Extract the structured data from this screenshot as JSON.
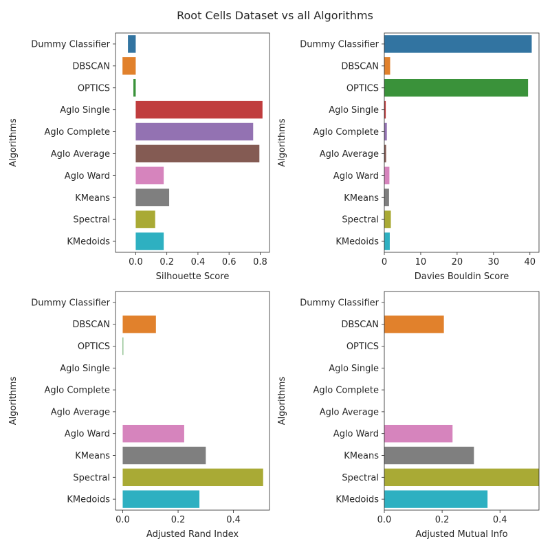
{
  "title": "Root Cells Dataset vs all Algorithms",
  "chart_data": [
    {
      "type": "bar",
      "orientation": "horizontal",
      "xlabel": "Silhouette Score",
      "ylabel": "Algorithms",
      "xlim": [
        -0.13,
        0.86
      ],
      "xticks": [
        0.0,
        0.2,
        0.4,
        0.6,
        0.8
      ],
      "xtick_labels": [
        "0.0",
        "0.2",
        "0.4",
        "0.6",
        "0.8"
      ],
      "categories": [
        "Dummy Classifier",
        "DBSCAN",
        "OPTICS",
        "Aglo Single",
        "Aglo Complete",
        "Aglo Average",
        "Aglo Ward",
        "KMeans",
        "Spectral",
        "KMedoids"
      ],
      "values": [
        -0.05,
        -0.085,
        -0.015,
        0.815,
        0.755,
        0.795,
        0.18,
        0.215,
        0.125,
        0.18
      ],
      "grid": false,
      "frame": "full"
    },
    {
      "type": "bar",
      "orientation": "horizontal",
      "xlabel": "Davies Bouldin Score",
      "ylabel": "Algorithms",
      "xlim": [
        0,
        42.5
      ],
      "xticks": [
        0,
        10,
        20,
        30,
        40
      ],
      "xtick_labels": [
        "0",
        "10",
        "20",
        "30",
        "40"
      ],
      "categories": [
        "Dummy Classifier",
        "DBSCAN",
        "OPTICS",
        "Aglo Single",
        "Aglo Complete",
        "Aglo Average",
        "Aglo Ward",
        "KMeans",
        "Spectral",
        "KMedoids"
      ],
      "values": [
        40.5,
        1.6,
        39.5,
        0.4,
        0.7,
        0.5,
        1.4,
        1.3,
        1.8,
        1.5
      ],
      "grid": false,
      "frame": "full"
    },
    {
      "type": "bar",
      "orientation": "horizontal",
      "xlabel": "Adjusted Rand Index",
      "ylabel": "Algorithms",
      "xlim": [
        -0.026,
        0.53
      ],
      "xticks": [
        0.0,
        0.2,
        0.4
      ],
      "xtick_labels": [
        "0.0",
        "0.2",
        "0.4"
      ],
      "categories": [
        "Dummy Classifier",
        "DBSCAN",
        "OPTICS",
        "Aglo Single",
        "Aglo Complete",
        "Aglo Average",
        "Aglo Ward",
        "KMeans",
        "Spectral",
        "KMedoids"
      ],
      "values": [
        0.0,
        0.12,
        0.002,
        0.0,
        0.0,
        0.0,
        0.222,
        0.3,
        0.507,
        0.277
      ],
      "grid": false,
      "frame": "full"
    },
    {
      "type": "bar",
      "orientation": "horizontal",
      "xlabel": "Adjusted Mutual Info",
      "ylabel": "Algorithms",
      "xlim": [
        0,
        0.535
      ],
      "xticks": [
        0.0,
        0.2,
        0.4
      ],
      "xtick_labels": [
        "0.0",
        "0.2",
        "0.4"
      ],
      "categories": [
        "Dummy Classifier",
        "DBSCAN",
        "OPTICS",
        "Aglo Single",
        "Aglo Complete",
        "Aglo Average",
        "Aglo Ward",
        "KMeans",
        "Spectral",
        "KMedoids"
      ],
      "values": [
        0.0,
        0.206,
        0.0,
        0.0,
        0.0,
        0.0,
        0.236,
        0.31,
        0.535,
        0.357
      ],
      "grid": false,
      "frame": "full"
    }
  ],
  "colors": [
    "#3274a1",
    "#e1812c",
    "#3a923a",
    "#c03d3e",
    "#9372b2",
    "#845b53",
    "#d684bd",
    "#7f7f7f",
    "#a9aa35",
    "#2eb0c1"
  ]
}
